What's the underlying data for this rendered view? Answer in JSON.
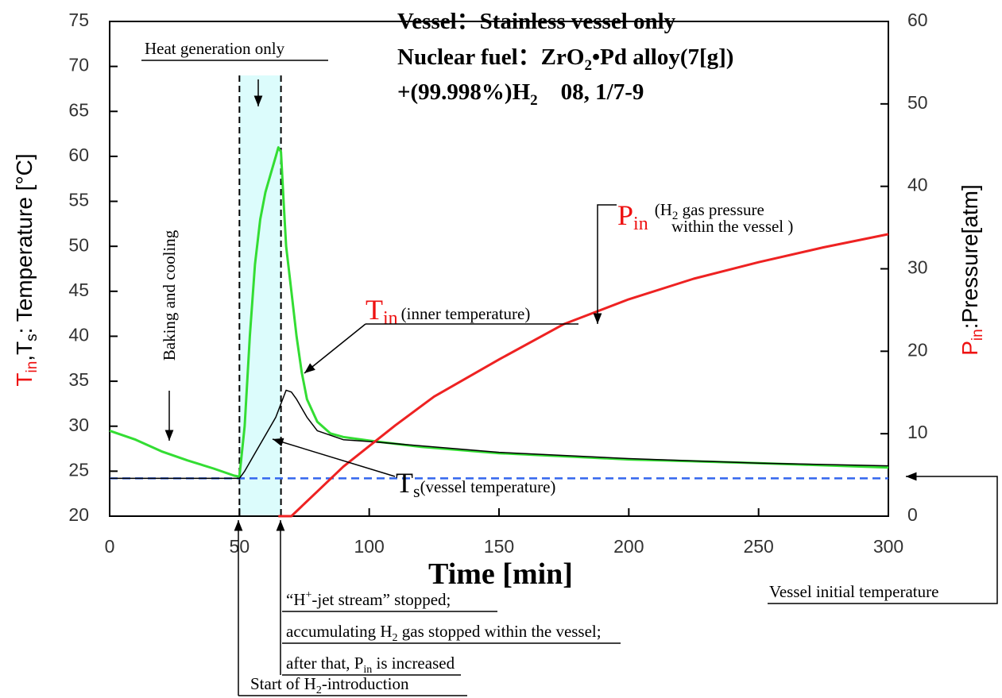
{
  "chart_data": {
    "type": "line",
    "title_lines": [
      [
        "Vessel：Stainless vessel only"
      ],
      [
        "Nuclear fuel：ZrO",
        "2",
        "•Pd alloy(7[g])"
      ],
      [
        "+(99.998%)H",
        "2",
        "    08, 1/7-9"
      ]
    ],
    "xlabel": "Time [min]",
    "ylabel": [
      "T",
      "in",
      ",T",
      "s",
      ": Temperature [°C]"
    ],
    "y2label": [
      "P",
      "in",
      ":Pressure[atm]"
    ],
    "xlim": [
      0,
      300
    ],
    "xticks": [
      0,
      50,
      100,
      150,
      200,
      250,
      300
    ],
    "ylim": [
      20,
      75
    ],
    "yticks": [
      20,
      25,
      30,
      35,
      40,
      45,
      50,
      55,
      60,
      65,
      70,
      75
    ],
    "y2lim": [
      0,
      60
    ],
    "y2ticks": [
      0,
      10,
      20,
      30,
      40,
      50,
      60
    ],
    "series": [
      {
        "color": "#33dd33",
        "x": [
          0,
          10,
          20,
          30,
          40,
          48,
          50,
          52,
          54,
          56,
          58,
          60,
          62,
          64,
          65,
          66,
          67,
          68,
          70,
          72,
          74,
          76,
          80,
          85,
          90,
          100,
          120,
          150,
          200,
          250,
          300
        ],
        "values": [
          29.5,
          28.5,
          27.2,
          26.2,
          25.3,
          24.5,
          24.4,
          30,
          40,
          48,
          53,
          56,
          58,
          60,
          61,
          60.5,
          55,
          50,
          45,
          40,
          36,
          33,
          30.5,
          29.2,
          28.8,
          28.4,
          27.7,
          27,
          26.3,
          25.9,
          25.4
        ]
      },
      {
        "color": "#000000",
        "x": [
          0,
          50,
          52,
          56,
          60,
          64,
          66,
          68,
          70,
          72,
          76,
          80,
          90,
          100,
          150,
          200,
          250,
          300
        ],
        "values": [
          24.2,
          24.2,
          25,
          27,
          29,
          31,
          32.5,
          34,
          33.8,
          33,
          31,
          29.5,
          28.5,
          28.3,
          27.1,
          26.4,
          25.9,
          25.6
        ]
      },
      {
        "color": "#ee2222",
        "axis": "y2",
        "x": [
          65,
          70,
          80,
          90,
          100,
          110,
          125,
          150,
          175,
          200,
          225,
          250,
          275,
          300
        ],
        "values": [
          0,
          0,
          3,
          6,
          8.5,
          11,
          14.5,
          19,
          23.3,
          26.3,
          28.8,
          30.8,
          32.6,
          34.2
        ]
      }
    ],
    "reference_line": {
      "value": 24.2,
      "color": "#3366ee"
    },
    "highlight": {
      "xrange": [
        50,
        66
      ],
      "ytop": 69,
      "color": "#dcfcfc"
    },
    "annotations": {
      "heat": [
        "Heat generation only"
      ],
      "baking": [
        "Baking and cooling"
      ],
      "pin": [
        "P",
        "in",
        "(H",
        "2",
        " gas pressure",
        "within the vessel )"
      ],
      "tin": [
        "T",
        "in",
        "(inner temperature)"
      ],
      "ts": [
        "T",
        "s",
        "(vessel temperature)"
      ],
      "jet1": [
        "“H",
        "+",
        "-jet stream” stopped;"
      ],
      "jet2": [
        "accumulating H",
        "2",
        " gas stopped within the vessel;"
      ],
      "jet3": [
        "after that, P",
        "in",
        " is increased"
      ],
      "start": [
        "Start of H",
        "2",
        "-introduction"
      ],
      "initial": [
        "Vessel initial temperature"
      ]
    }
  }
}
